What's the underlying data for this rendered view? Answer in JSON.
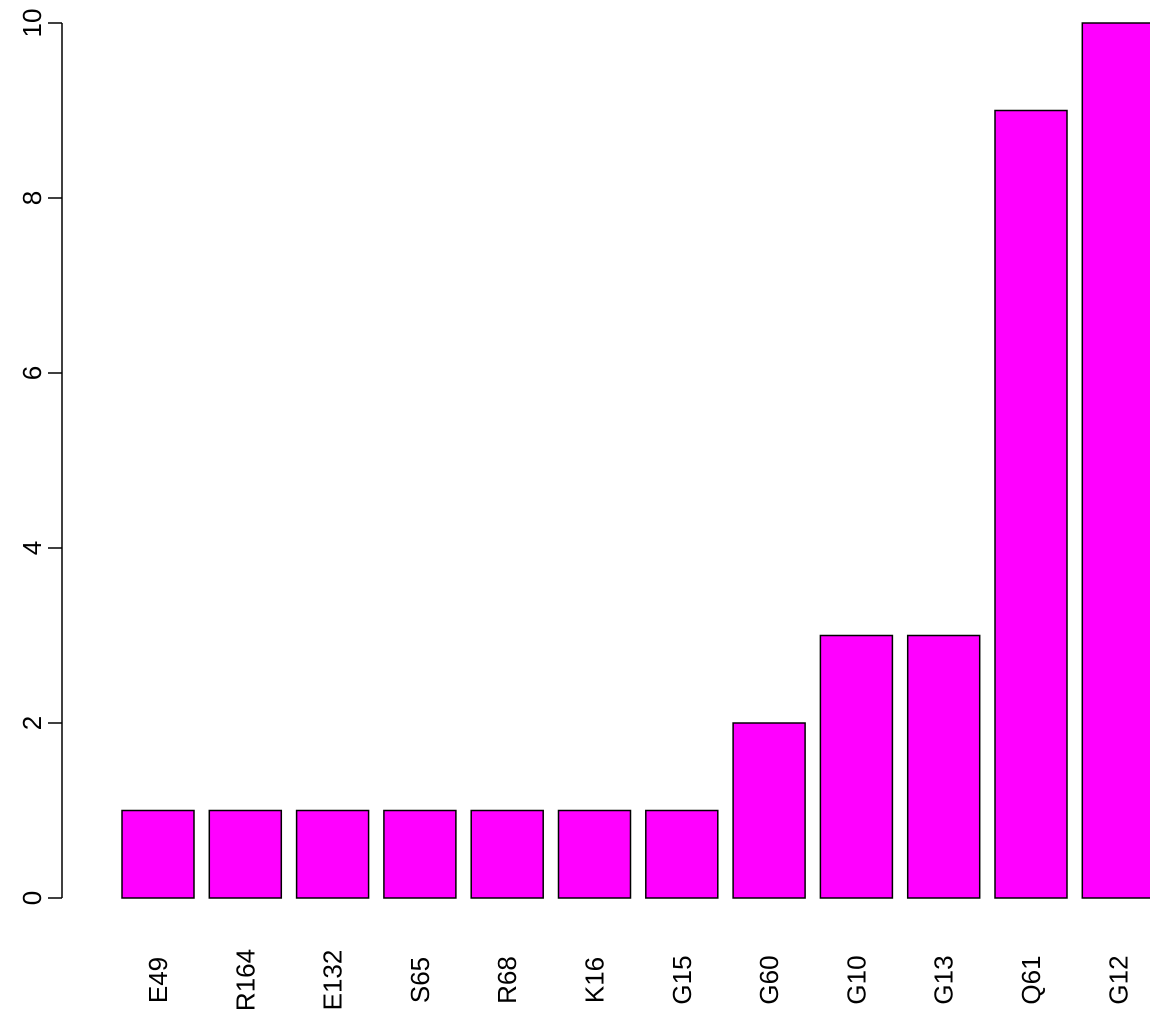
{
  "chart_data": {
    "type": "bar",
    "categories": [
      "E49",
      "R164",
      "E132",
      "S65",
      "R68",
      "K16",
      "G15",
      "G60",
      "G10",
      "G13",
      "Q61",
      "G12"
    ],
    "values": [
      1,
      1,
      1,
      1,
      1,
      1,
      1,
      2,
      3,
      3,
      9,
      10
    ],
    "y_ticks": [
      0,
      2,
      4,
      6,
      8,
      10
    ],
    "ylim": [
      0,
      10
    ],
    "title": "",
    "xlabel": "",
    "ylabel": "",
    "grid": false,
    "bar_color": "#FF00FF",
    "edge_color": "#000000",
    "x_tick_rotation": "vertical",
    "y_tick_rotation": "vertical"
  }
}
